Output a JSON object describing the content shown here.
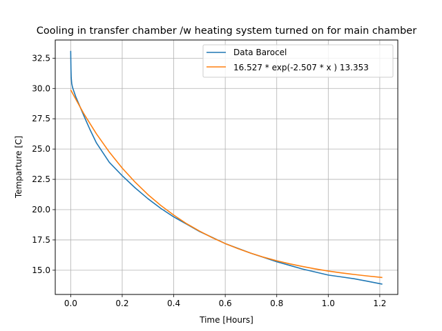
{
  "chart_data": {
    "type": "line",
    "title": "Cooling in transfer chamber /w heating system turned on for main chamber",
    "xlabel": "Time [Hours]",
    "ylabel": "Temparture [C]",
    "xlim": [
      -0.06,
      1.27
    ],
    "ylim": [
      13.0,
      34.0
    ],
    "xticks": [
      0.0,
      0.2,
      0.4,
      0.6,
      0.8,
      1.0,
      1.2
    ],
    "xtick_labels": [
      "0.0",
      "0.2",
      "0.4",
      "0.6",
      "0.8",
      "1.0",
      "1.2"
    ],
    "yticks": [
      15.0,
      17.5,
      20.0,
      22.5,
      25.0,
      27.5,
      30.0,
      32.5
    ],
    "ytick_labels": [
      "15.0",
      "17.5",
      "20.0",
      "22.5",
      "25.0",
      "27.5",
      "30.0",
      "32.5"
    ],
    "grid": true,
    "legend_position": "top-right",
    "series": [
      {
        "name": "Data Barocel",
        "color": "#1f77b4",
        "x": [
          0.0,
          0.0005,
          0.001,
          0.002,
          0.004,
          0.007,
          0.01,
          0.015,
          0.02,
          0.03,
          0.05,
          0.075,
          0.1,
          0.15,
          0.2,
          0.25,
          0.3,
          0.35,
          0.4,
          0.45,
          0.5,
          0.55,
          0.6,
          0.65,
          0.7,
          0.75,
          0.8,
          0.85,
          0.9,
          0.95,
          1.0,
          1.05,
          1.1,
          1.15,
          1.21
        ],
        "y": [
          33.1,
          32.3,
          31.6,
          30.9,
          30.4,
          30.1,
          29.9,
          29.6,
          29.3,
          28.8,
          27.8,
          26.6,
          25.5,
          23.9,
          22.8,
          21.8,
          20.9,
          20.1,
          19.4,
          18.8,
          18.2,
          17.7,
          17.2,
          16.8,
          16.4,
          16.05,
          15.7,
          15.4,
          15.1,
          14.85,
          14.6,
          14.45,
          14.3,
          14.1,
          13.85
        ]
      },
      {
        "name": "16.527 * exp(-2.507 * x ) 13.353",
        "color": "#ff7f0e",
        "x": [
          0.0,
          0.05,
          0.1,
          0.15,
          0.2,
          0.25,
          0.3,
          0.35,
          0.4,
          0.45,
          0.5,
          0.55,
          0.6,
          0.65,
          0.7,
          0.75,
          0.8,
          0.85,
          0.9,
          0.95,
          1.0,
          1.05,
          1.1,
          1.15,
          1.21
        ],
        "y": [
          29.88,
          27.95,
          26.25,
          24.75,
          23.43,
          22.27,
          21.24,
          20.34,
          19.55,
          18.84,
          18.23,
          17.68,
          17.2,
          16.78,
          16.4,
          16.07,
          15.78,
          15.53,
          15.31,
          15.11,
          14.93,
          14.78,
          14.65,
          14.53,
          14.4
        ]
      }
    ]
  }
}
